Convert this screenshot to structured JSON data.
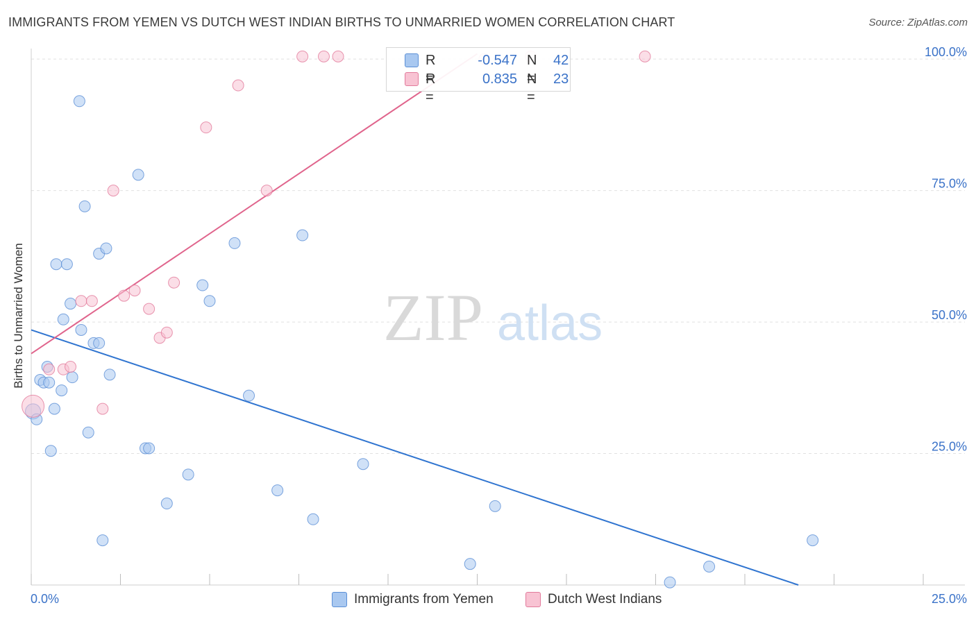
{
  "header": {
    "title": "IMMIGRANTS FROM YEMEN VS DUTCH WEST INDIAN BIRTHS TO UNMARRIED WOMEN CORRELATION CHART",
    "source": "Source: ZipAtlas.com"
  },
  "watermark": {
    "zip": "ZIP",
    "atlas": "atlas"
  },
  "legend": {
    "rows": [
      {
        "r_label": "R =",
        "r_value": "-0.547",
        "n_label": "N =",
        "n_value": "42",
        "color": "#a9c8f0",
        "border": "#5b8fd6"
      },
      {
        "r_label": "R =",
        "r_value": "0.835",
        "n_label": "N =",
        "n_value": "23",
        "color": "#f8c3d3",
        "border": "#e27a9b"
      }
    ]
  },
  "bottom_legend": {
    "items": [
      {
        "label": "Immigrants from Yemen",
        "color": "#a9c8f0",
        "border": "#5b8fd6"
      },
      {
        "label": "Dutch West Indians",
        "color": "#f8c3d3",
        "border": "#e27a9b"
      }
    ]
  },
  "chart_data": {
    "type": "scatter",
    "ylabel": "Births to Unmarried Women",
    "x_tick_labels": [
      "0.0%",
      "25.0%"
    ],
    "y_tick_labels": [
      "100.0%",
      "75.0%",
      "50.0%",
      "25.0%"
    ],
    "y_ticks": [
      100,
      75,
      50,
      25
    ],
    "xlim": [
      0,
      25
    ],
    "ylim": [
      0,
      102
    ],
    "grid": true,
    "legend_position": "top-center",
    "series": [
      {
        "name": "Immigrants from Yemen",
        "color": "#a9c8f0",
        "stroke": "#5b8fd6",
        "points": [
          [
            0.05,
            33.0
          ],
          [
            0.15,
            31.5
          ],
          [
            0.25,
            39.0
          ],
          [
            0.35,
            38.5
          ],
          [
            0.45,
            41.5
          ],
          [
            0.5,
            38.5
          ],
          [
            0.55,
            25.5
          ],
          [
            0.65,
            33.5
          ],
          [
            0.7,
            61.0
          ],
          [
            0.85,
            37.0
          ],
          [
            0.9,
            50.5
          ],
          [
            1.0,
            61.0
          ],
          [
            1.1,
            53.5
          ],
          [
            1.15,
            39.5
          ],
          [
            1.35,
            92.0
          ],
          [
            1.4,
            48.5
          ],
          [
            1.5,
            72.0
          ],
          [
            1.6,
            29.0
          ],
          [
            1.75,
            46.0
          ],
          [
            1.9,
            46.0
          ],
          [
            1.9,
            63.0
          ],
          [
            2.0,
            8.5
          ],
          [
            2.1,
            64.0
          ],
          [
            2.2,
            40.0
          ],
          [
            3.0,
            78.0
          ],
          [
            3.2,
            26.0
          ],
          [
            3.3,
            26.0
          ],
          [
            3.8,
            15.5
          ],
          [
            4.4,
            21.0
          ],
          [
            4.8,
            57.0
          ],
          [
            5.0,
            54.0
          ],
          [
            5.7,
            65.0
          ],
          [
            6.1,
            36.0
          ],
          [
            6.9,
            18.0
          ],
          [
            7.6,
            66.5
          ],
          [
            7.9,
            12.5
          ],
          [
            9.3,
            23.0
          ],
          [
            12.3,
            4.0
          ],
          [
            13.0,
            15.0
          ],
          [
            17.9,
            0.5
          ],
          [
            19.0,
            3.5
          ],
          [
            21.9,
            8.5
          ]
        ],
        "trendline": [
          [
            0.0,
            48.5
          ],
          [
            21.5,
            0.0
          ]
        ]
      },
      {
        "name": "Dutch West Indians",
        "color": "#f8c3d3",
        "stroke": "#e27a9b",
        "points": [
          [
            0.05,
            34.0
          ],
          [
            0.5,
            41.0
          ],
          [
            0.9,
            41.0
          ],
          [
            1.1,
            41.5
          ],
          [
            1.4,
            54.0
          ],
          [
            1.7,
            54.0
          ],
          [
            2.0,
            33.5
          ],
          [
            2.3,
            75.0
          ],
          [
            2.6,
            55.0
          ],
          [
            2.9,
            56.0
          ],
          [
            3.3,
            52.5
          ],
          [
            3.6,
            47.0
          ],
          [
            3.8,
            48.0
          ],
          [
            4.0,
            57.5
          ],
          [
            4.9,
            87.0
          ],
          [
            5.8,
            95.0
          ],
          [
            6.6,
            75.0
          ],
          [
            7.6,
            100.5
          ],
          [
            8.2,
            100.5
          ],
          [
            8.6,
            100.5
          ],
          [
            12.7,
            100.0
          ],
          [
            14.0,
            100.5
          ],
          [
            17.2,
            100.5
          ]
        ],
        "trendline": [
          [
            0.0,
            44.0
          ],
          [
            12.5,
            101.0
          ]
        ]
      }
    ]
  }
}
